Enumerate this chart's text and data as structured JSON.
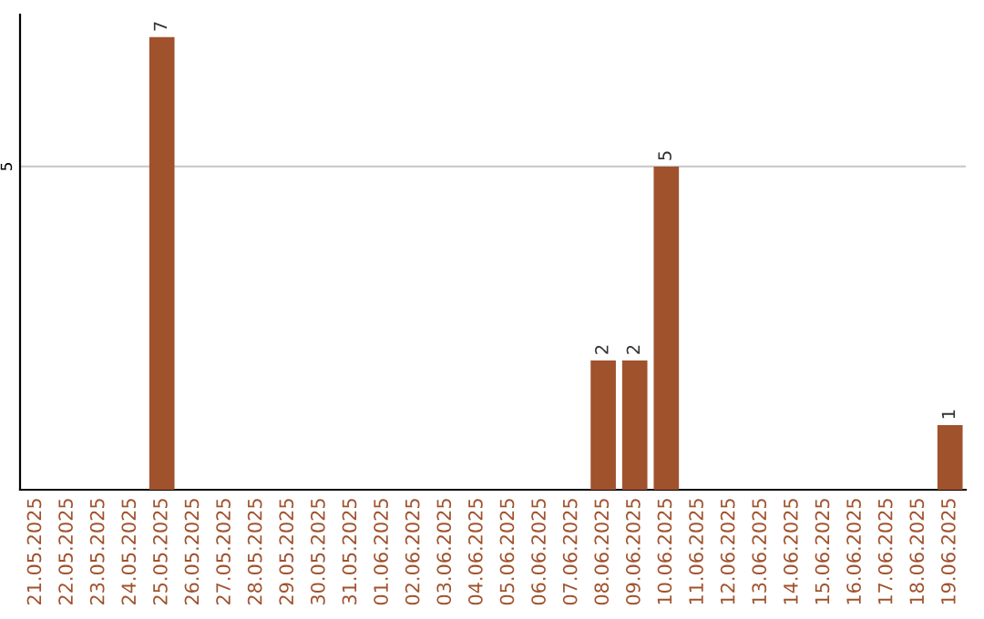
{
  "chart_data": {
    "type": "bar",
    "categories": [
      "21.05.2025",
      "22.05.2025",
      "23.05.2025",
      "24.05.2025",
      "25.05.2025",
      "26.05.2025",
      "27.05.2025",
      "28.05.2025",
      "29.05.2025",
      "30.05.2025",
      "31.05.2025",
      "01.06.2025",
      "02.06.2025",
      "03.06.2025",
      "04.06.2025",
      "05.06.2025",
      "06.06.2025",
      "07.06.2025",
      "08.06.2025",
      "09.06.2025",
      "10.06.2025",
      "11.06.2025",
      "12.06.2025",
      "13.06.2025",
      "14.06.2025",
      "15.06.2025",
      "16.06.2025",
      "17.06.2025",
      "18.06.2025",
      "19.06.2025"
    ],
    "values": [
      0,
      0,
      0,
      0,
      7,
      0,
      0,
      0,
      0,
      0,
      0,
      0,
      0,
      0,
      0,
      0,
      0,
      0,
      2,
      2,
      5,
      0,
      0,
      0,
      0,
      0,
      0,
      0,
      0,
      1
    ],
    "color": "#a0522d",
    "value_labels": [
      null,
      null,
      null,
      null,
      "7",
      null,
      null,
      null,
      null,
      null,
      null,
      null,
      null,
      null,
      null,
      null,
      null,
      null,
      "2",
      "2",
      "5",
      null,
      null,
      null,
      null,
      null,
      null,
      null,
      null,
      "1"
    ],
    "ylim": [
      0,
      7.35
    ],
    "yticks": [
      5
    ],
    "grid": "y"
  }
}
